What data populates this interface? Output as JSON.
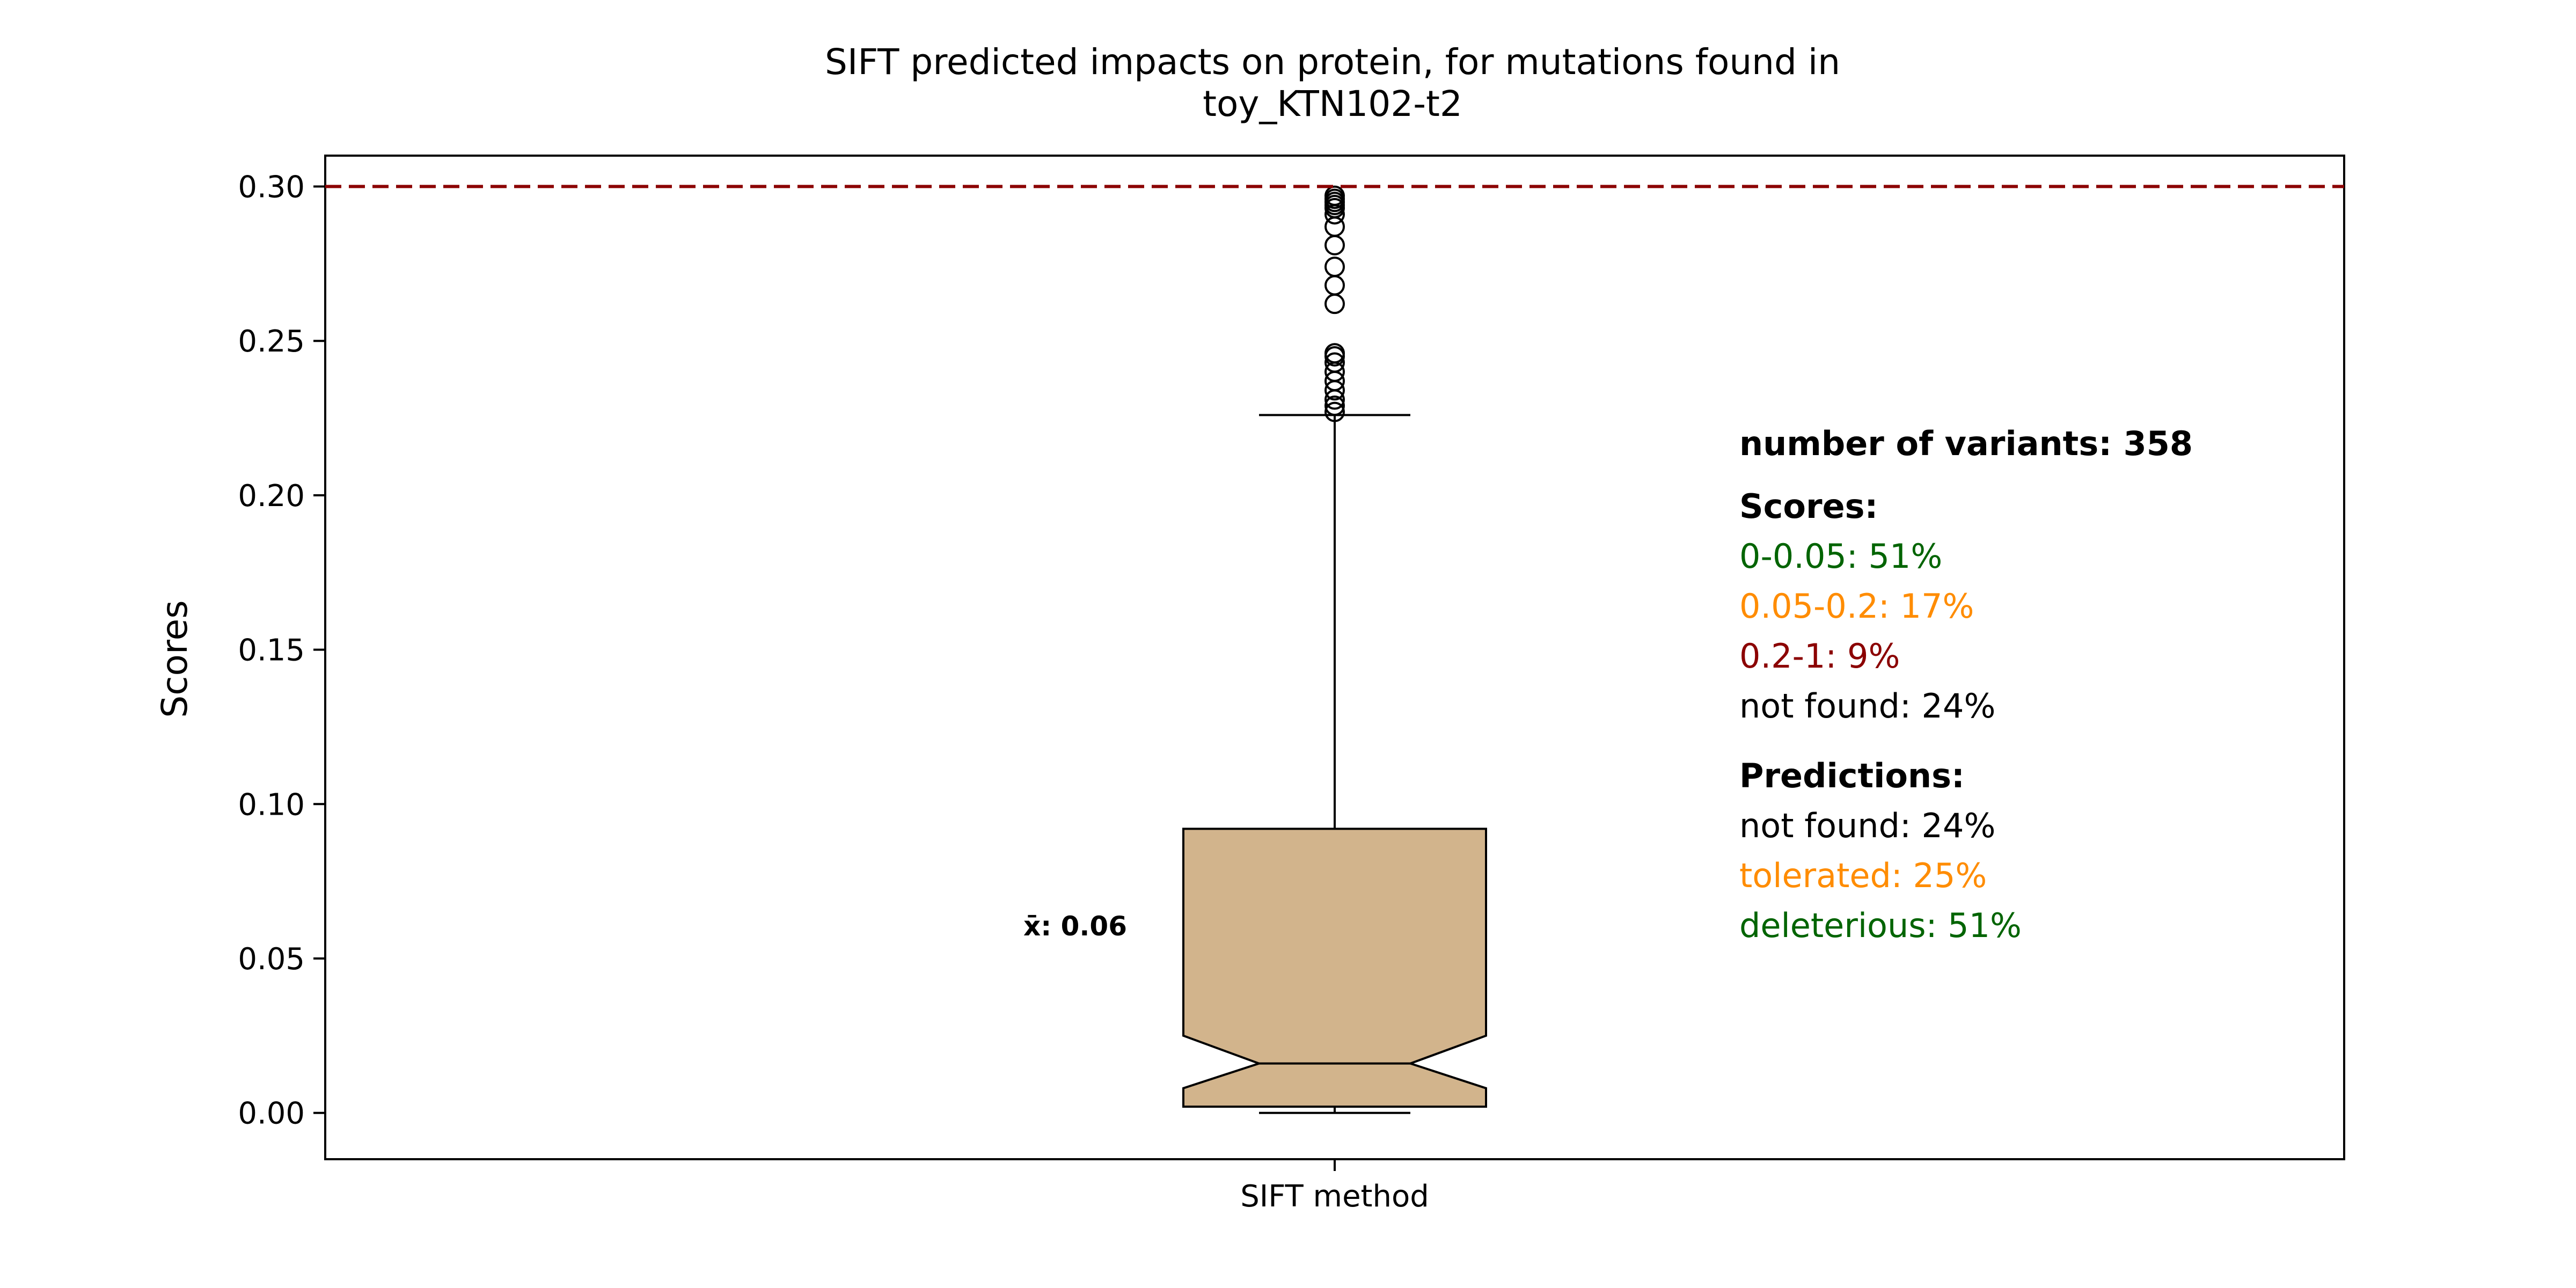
{
  "chart_data": {
    "type": "box",
    "title": "SIFT predicted impacts on protein, for mutations found in",
    "title_line2": "toy_KTN102-t2",
    "ylabel": "Scores",
    "ylim": [
      -0.015,
      0.31
    ],
    "yticks": [
      "0.00",
      "0.05",
      "0.10",
      "0.15",
      "0.20",
      "0.25",
      "0.30"
    ],
    "ytick_values": [
      0.0,
      0.05,
      0.1,
      0.15,
      0.2,
      0.25,
      0.3
    ],
    "categories": [
      "SIFT method"
    ],
    "box": {
      "whisker_low": 0.0,
      "q1": 0.002,
      "median": 0.016,
      "q3": 0.092,
      "whisker_high": 0.226,
      "notch_low": 0.008,
      "notch_high": 0.025,
      "outliers": [
        0.227,
        0.229,
        0.231,
        0.234,
        0.237,
        0.24,
        0.243,
        0.245,
        0.246,
        0.262,
        0.268,
        0.274,
        0.281,
        0.287,
        0.291,
        0.293,
        0.294,
        0.295,
        0.296,
        0.297
      ]
    },
    "reference_line": 0.3,
    "mean_label": "x̄: 0.06",
    "mean_value": 0.06,
    "colors": {
      "box_fill": "#d2b48c",
      "reference_line": "#8b0000",
      "green": "#006400",
      "orange": "#ff8c00",
      "darkred": "#8b0000",
      "black": "#000000"
    },
    "legend_placement": "right",
    "annotations": {
      "variants": "number of variants: 358",
      "scores_header": "Scores:",
      "scores": [
        {
          "text": "0-0.05: 51%",
          "color": "#006400"
        },
        {
          "text": "0.05-0.2: 17%",
          "color": "#ff8c00"
        },
        {
          "text": "0.2-1: 9%",
          "color": "#8b0000"
        },
        {
          "text": "not found: 24%",
          "color": "#000000"
        }
      ],
      "predictions_header": "Predictions:",
      "predictions": [
        {
          "text": "not found: 24%",
          "color": "#000000"
        },
        {
          "text": "tolerated: 25%",
          "color": "#ff8c00"
        },
        {
          "text": "deleterious: 51%",
          "color": "#006400"
        }
      ]
    }
  }
}
